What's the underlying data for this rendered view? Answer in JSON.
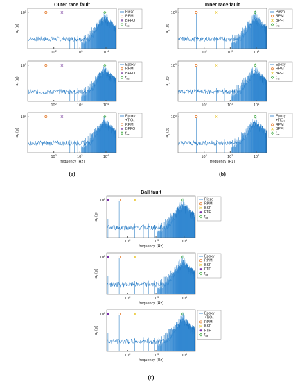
{
  "chart_data": [
    {
      "type": "line",
      "group": "(a)",
      "title": "Outer race fault",
      "legend": [
        "Piezo",
        "RPM",
        "BPFO",
        "f_ns"
      ],
      "markers": {
        "RPM": 50,
        "BPFO": 205,
        "f_ns": 9000
      },
      "ylabel": "a_z (g)",
      "xlabel": "",
      "ytick": "10^0",
      "xticks": [
        "10^2",
        "10^3",
        "10^4"
      ],
      "xscale": "log",
      "xlim": [
        10,
        25000
      ]
    },
    {
      "type": "line",
      "group": "(a)",
      "title": "",
      "legend": [
        "Epoxy",
        "RPM",
        "BPFO",
        "f_ns"
      ],
      "markers": {
        "RPM": 50,
        "BPFO": 205,
        "f_ns": 9000
      },
      "ylabel": "a_z (g)",
      "xlabel": "",
      "ytick": "10^0",
      "xticks": [
        "10^2",
        "10^3",
        "10^4"
      ],
      "xscale": "log",
      "xlim": [
        10,
        25000
      ]
    },
    {
      "type": "line",
      "group": "(a)",
      "title": "",
      "legend": [
        "Epoxy +TiO2",
        "RPM",
        "BPFO",
        "f_ns"
      ],
      "markers": {
        "RPM": 50,
        "BPFO": 205,
        "f_ns": 9000
      },
      "ylabel": "a_z (g)",
      "xlabel": "frequency (Hz)",
      "ytick": "10^0",
      "xticks": [
        "10^2",
        "10^3",
        "10^4"
      ],
      "xscale": "log",
      "xlim": [
        10,
        25000
      ]
    },
    {
      "type": "line",
      "group": "(b)",
      "title": "Inner race fault",
      "legend": [
        "Piezo",
        "RPM",
        "BPFI",
        "f_ns"
      ],
      "markers": {
        "RPM": 50,
        "BPFI": 300,
        "f_ns": 9000
      },
      "ylabel": "a_z (g)",
      "xlabel": "",
      "ytick": "10^0",
      "xticks": [
        "10^2",
        "10^3",
        "10^4"
      ],
      "xscale": "log",
      "xlim": [
        10,
        25000
      ]
    },
    {
      "type": "line",
      "group": "(b)",
      "title": "",
      "legend": [
        "Epoxy",
        "RPM",
        "BPFI",
        "f_ns"
      ],
      "markers": {
        "RPM": 50,
        "BPFI": 300,
        "f_ns": 9000
      },
      "ylabel": "a_z (g)",
      "xlabel": "",
      "ytick": "10^0",
      "xticks": [
        "10^2",
        "10^3",
        "10^4"
      ],
      "xscale": "log",
      "xlim": [
        10,
        25000
      ]
    },
    {
      "type": "line",
      "group": "(b)",
      "title": "",
      "legend": [
        "Epoxy +TiO2",
        "RPM",
        "BPFI",
        "f_ns"
      ],
      "markers": {
        "RPM": 50,
        "BPFI": 300,
        "f_ns": 9000
      },
      "ylabel": "a_z (g)",
      "xlabel": "frequency (Hz)",
      "ytick": "10^0",
      "xticks": [
        "10^2",
        "10^3",
        "10^4"
      ],
      "xscale": "log",
      "xlim": [
        10,
        25000
      ]
    },
    {
      "type": "line",
      "group": "(c)",
      "title": "Ball fault",
      "legend": [
        "Piezo",
        "RPM",
        "BSF",
        "FTF",
        "f_ns"
      ],
      "markers": {
        "RPM": 50,
        "BSF": 180,
        "FTF": 20,
        "f_ns": 9000
      },
      "ylabel": "a_z (g)",
      "xlabel": "frequency (Hz)",
      "ytick": "10^0",
      "xticks": [
        "10^2",
        "10^3",
        "10^4"
      ],
      "xscale": "log",
      "xlim": [
        18,
        25000
      ]
    },
    {
      "type": "line",
      "group": "(c)",
      "title": "",
      "legend": [
        "Epoxy",
        "RPM",
        "BSF",
        "FTF",
        "f_ns"
      ],
      "markers": {
        "RPM": 50,
        "BSF": 180,
        "FTF": 20,
        "f_ns": 9000
      },
      "ylabel": "a_z (g)",
      "xlabel": "frequency (Hz)",
      "ytick": "10^0",
      "xticks": [
        "10^2",
        "10^3",
        "10^4"
      ],
      "xscale": "log",
      "xlim": [
        18,
        25000
      ]
    },
    {
      "type": "line",
      "group": "(c)",
      "title": "",
      "legend": [
        "Epoxy +TiO2",
        "RPM",
        "BSF",
        "FTF",
        "f_ns"
      ],
      "markers": {
        "RPM": 50,
        "BSF": 180,
        "FTF": 20,
        "f_ns": 9000
      },
      "ylabel": "a_z (g)",
      "xlabel": "frequency (Hz)",
      "ytick": "10^0",
      "xticks": [
        "10^2",
        "10^3",
        "10^4"
      ],
      "xscale": "log",
      "xlim": [
        18,
        25000
      ]
    }
  ],
  "captions": [
    "(a)",
    "(b)",
    "(c)"
  ],
  "colors": {
    "line": "#1f77c4",
    "dense": "#3b8fd6",
    "RPM": "#e2711d",
    "BPFO": "#7a3fa0",
    "BPFI": "#e8c21a",
    "BSF": "#e8c21a",
    "FTF": "#7a2fa8",
    "f_ns": "#3aa63a"
  }
}
